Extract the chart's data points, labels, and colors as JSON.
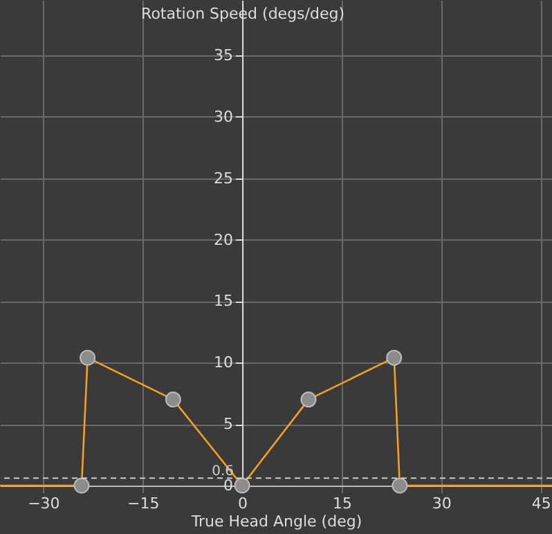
{
  "chart_data": {
    "type": "line",
    "xlabel": "True Head Angle (deg)",
    "ylabel": "Rotation Speed (degs/deg)",
    "xlim": [
      -36.5,
      46.7
    ],
    "ylim": [
      0,
      39.5
    ],
    "xticks": [
      -30,
      -15,
      0,
      15,
      30,
      45
    ],
    "yticks": [
      0,
      5,
      10,
      15,
      20,
      25,
      30,
      35
    ],
    "grid": true,
    "series": [
      {
        "type": "line",
        "color": "#f5a020",
        "marker": "none",
        "x": [
          -36.5,
          -24.2,
          -23.3,
          -10.4,
          0,
          10,
          22.9,
          23.75,
          46.7
        ],
        "values": [
          0,
          0,
          10.4,
          7,
          0,
          7,
          10.4,
          0,
          0
        ]
      },
      {
        "type": "scatter",
        "color": "#8c8c8c",
        "marker": "circle",
        "x": [
          -24.2,
          -23.3,
          -10.4,
          0,
          10,
          22.9,
          23.75
        ],
        "values": [
          0,
          10.4,
          7,
          0,
          7,
          10.4,
          0
        ]
      }
    ],
    "ref_lines": [
      {
        "axis": "y",
        "value": 0.6,
        "label": "0.6",
        "color": "#cccccc",
        "line_style": "dashed"
      }
    ]
  }
}
